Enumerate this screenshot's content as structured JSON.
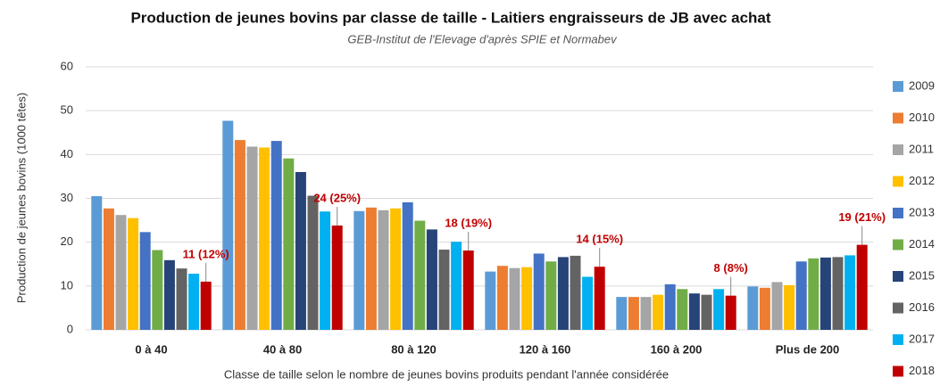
{
  "chart_data": {
    "type": "bar",
    "title": "Production de jeunes bovins par classe de taille - Laitiers engraisseurs de JB avec achat",
    "subtitle": "GEB-Institut de l'Elevage d'après SPIE et Normabev",
    "y_label": "Production de jeunes bovins (1000 têtes)",
    "x_label": "Classe de taille selon le nombre de jeunes bovins produits pendant l'année considérée",
    "categories": [
      "0 à 40",
      "40 à 80",
      "80 à 120",
      "120 à 160",
      "160 à 200",
      "Plus de 200"
    ],
    "series": [
      {
        "name": "2009",
        "color": "#5b9bd5",
        "values": [
          30.5,
          47.7,
          27.1,
          13.3,
          7.5,
          9.9
        ]
      },
      {
        "name": "2010",
        "color": "#ed7d31",
        "values": [
          27.7,
          43.3,
          27.9,
          14.6,
          7.5,
          9.6
        ]
      },
      {
        "name": "2011",
        "color": "#a5a5a5",
        "values": [
          26.2,
          41.8,
          27.3,
          14.1,
          7.5,
          10.9
        ]
      },
      {
        "name": "2012",
        "color": "#ffc000",
        "values": [
          25.5,
          41.6,
          27.7,
          14.3,
          8.0,
          10.2
        ]
      },
      {
        "name": "2013",
        "color": "#4472c4",
        "values": [
          22.3,
          43.1,
          29.1,
          17.4,
          10.4,
          15.6
        ]
      },
      {
        "name": "2014",
        "color": "#70ad47",
        "values": [
          18.2,
          39.1,
          24.9,
          15.6,
          9.3,
          16.3
        ]
      },
      {
        "name": "2015",
        "color": "#264478",
        "values": [
          15.9,
          36.0,
          22.9,
          16.6,
          8.3,
          16.5
        ]
      },
      {
        "name": "2016",
        "color": "#636363",
        "values": [
          14.0,
          30.6,
          18.3,
          16.9,
          8.0,
          16.6
        ]
      },
      {
        "name": "2017",
        "color": "#00b0f0",
        "values": [
          12.8,
          27.0,
          20.1,
          12.1,
          9.3,
          17.0
        ]
      },
      {
        "name": "2018",
        "color": "#c00000",
        "values": [
          11.0,
          23.8,
          18.1,
          14.4,
          7.8,
          19.4
        ],
        "value_labels": [
          "11 (12%)",
          "24 (25%)",
          "18 (19%)",
          "14 (15%)",
          "8 (8%)",
          "19 (21%)"
        ]
      }
    ],
    "ylim": [
      0,
      60
    ],
    "yticks": [
      0,
      10,
      20,
      30,
      40,
      50,
      60
    ],
    "grid": true,
    "legend": "right"
  }
}
